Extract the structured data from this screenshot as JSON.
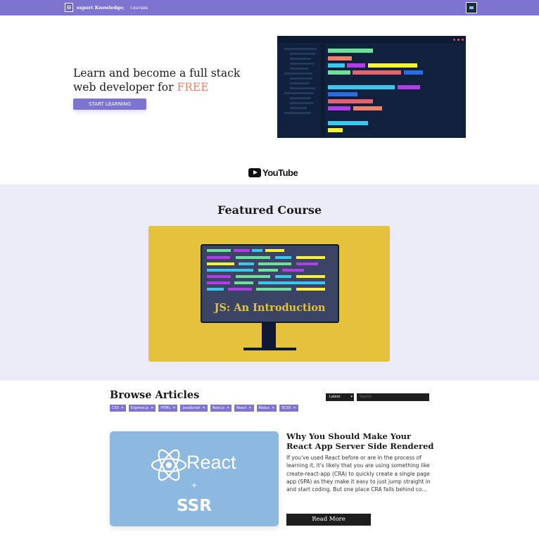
{
  "nav": {
    "brand": "export Knowledge;",
    "links": [
      "courses"
    ]
  },
  "hero": {
    "title_main": "Learn and become a full stack web developer for ",
    "title_highlight": "FREE",
    "cta": "START LEARNING",
    "highlight_color": "#f1806b"
  },
  "youtube": {
    "label": "YouTube"
  },
  "featured": {
    "title": "Featured Course",
    "course_title": "JS: An Introduction",
    "card_color": "#e4c23b"
  },
  "articles": {
    "title": "Browse Articles",
    "sort_value": "Latest",
    "search_placeholder": "Search",
    "tags": [
      "CSS",
      "Express.js",
      "HTML",
      "JavaScript",
      "Next.js",
      "React",
      "Redux",
      "SCSS"
    ],
    "items": [
      {
        "title": "Why You Should Make Your React App Server Side Rendered",
        "excerpt": "If you've used React before or are in the process of learning it, it's likely that you are using something like create-react-app (CRA) to quickly create a single page app (SPA) as they make it easy to just jump straight in and start coding. But one place CRA falls behind co...",
        "image_word": "React",
        "image_plus": "+",
        "image_sub": "SSR",
        "read_more": "Read More"
      }
    ]
  },
  "colors": {
    "accent": "#7d74d2",
    "featured_bg": "#ecebf8"
  }
}
